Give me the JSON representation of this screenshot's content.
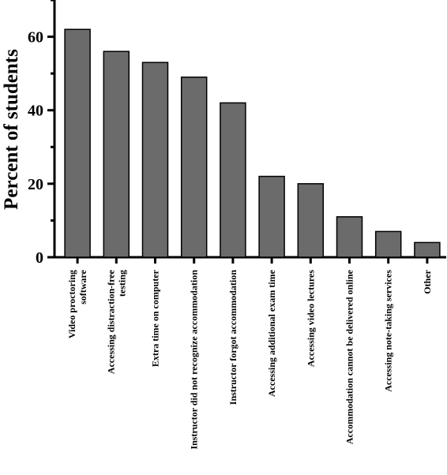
{
  "chart_data": {
    "type": "bar",
    "title": "",
    "xlabel": "",
    "ylabel": "Percent of students",
    "ylim": [
      0,
      70
    ],
    "yticks": [
      0,
      20,
      40,
      60
    ],
    "categories": [
      [
        "Video proctoring",
        "software"
      ],
      [
        "Accessing distraction-free",
        "testing"
      ],
      [
        "Extra time on computer"
      ],
      [
        "Instructor did not recognize accommodation"
      ],
      [
        "Instructor forgot accommodation"
      ],
      [
        "Accessing additional exam time"
      ],
      [
        "Accessing video lectures"
      ],
      [
        "Accommodation cannot be delivered online"
      ],
      [
        "Accessing note-taking services"
      ],
      [
        "Other"
      ]
    ],
    "values": [
      62,
      56,
      53,
      49,
      42,
      22,
      20,
      11,
      7,
      4
    ],
    "colors": {
      "bar": "#6b6b6b",
      "stroke": "#000000",
      "axis": "#000000"
    },
    "grid": false,
    "legend": "none"
  }
}
